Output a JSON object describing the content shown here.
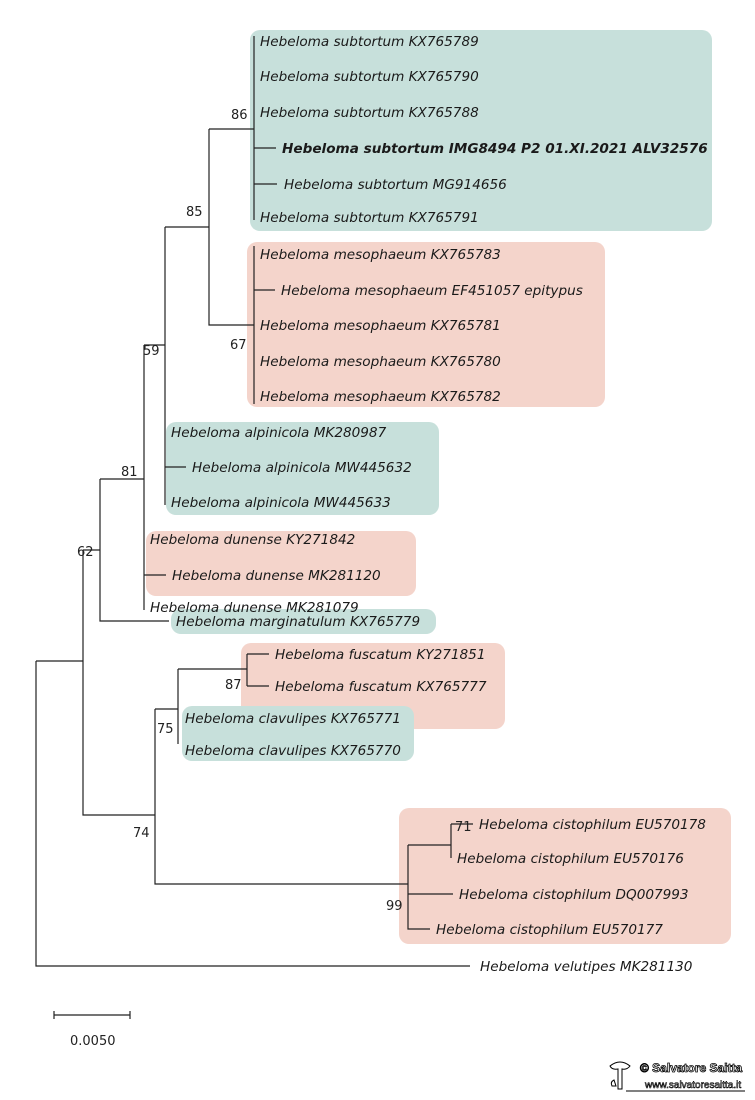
{
  "colors": {
    "clade_green": "#c7e0db",
    "clade_pink": "#f4d4cb",
    "branch": "#222222"
  },
  "clades": {
    "subtortum": [
      "Hebeloma subtortum KX765789",
      "Hebeloma subtortum KX765790",
      "Hebeloma subtortum KX765788",
      "Hebeloma subtortum IMG8494 P2 01.XI.2021 ALV32576",
      "Hebeloma subtortum MG914656",
      "Hebeloma subtortum KX765791"
    ],
    "mesophaeum": [
      "Hebeloma mesophaeum KX765783",
      "Hebeloma mesophaeum EF451057 epitypus",
      "Hebeloma mesophaeum KX765781",
      "Hebeloma mesophaeum KX765780",
      "Hebeloma mesophaeum KX765782"
    ],
    "alpinicola": [
      "Hebeloma alpinicola MK280987",
      "Hebeloma alpinicola MW445632",
      "Hebeloma alpinicola MW445633"
    ],
    "dunense": [
      "Hebeloma dunense KY271842",
      "Hebeloma dunense MK281120",
      "Hebeloma dunense MK281079"
    ],
    "marginatulum": [
      "Hebeloma marginatulum KX765779"
    ],
    "fuscatum": [
      "Hebeloma fuscatum KY271851",
      "Hebeloma fuscatum KX765777"
    ],
    "clavulipes": [
      "Hebeloma clavulipes KX765771",
      "Hebeloma clavulipes KX765770"
    ],
    "cistophilum": [
      "Hebeloma cistophilum EU570178",
      "Hebeloma cistophilum EU570176",
      "Hebeloma cistophilum DQ007993",
      "Hebeloma cistophilum EU570177"
    ],
    "outgroup": [
      "Hebeloma velutipes MK281130"
    ]
  },
  "bootstrap": {
    "n86": "86",
    "n85": "85",
    "n67": "67",
    "n59": "59",
    "n81": "81",
    "n62": "62",
    "n87": "87",
    "n75": "75",
    "n74": "74",
    "n71": "71",
    "n99": "99"
  },
  "scale_bar": {
    "label": "0.0050"
  },
  "watermark": {
    "name": "© Salvatore Saitta",
    "url": "www.salvatoresaitta.it"
  }
}
